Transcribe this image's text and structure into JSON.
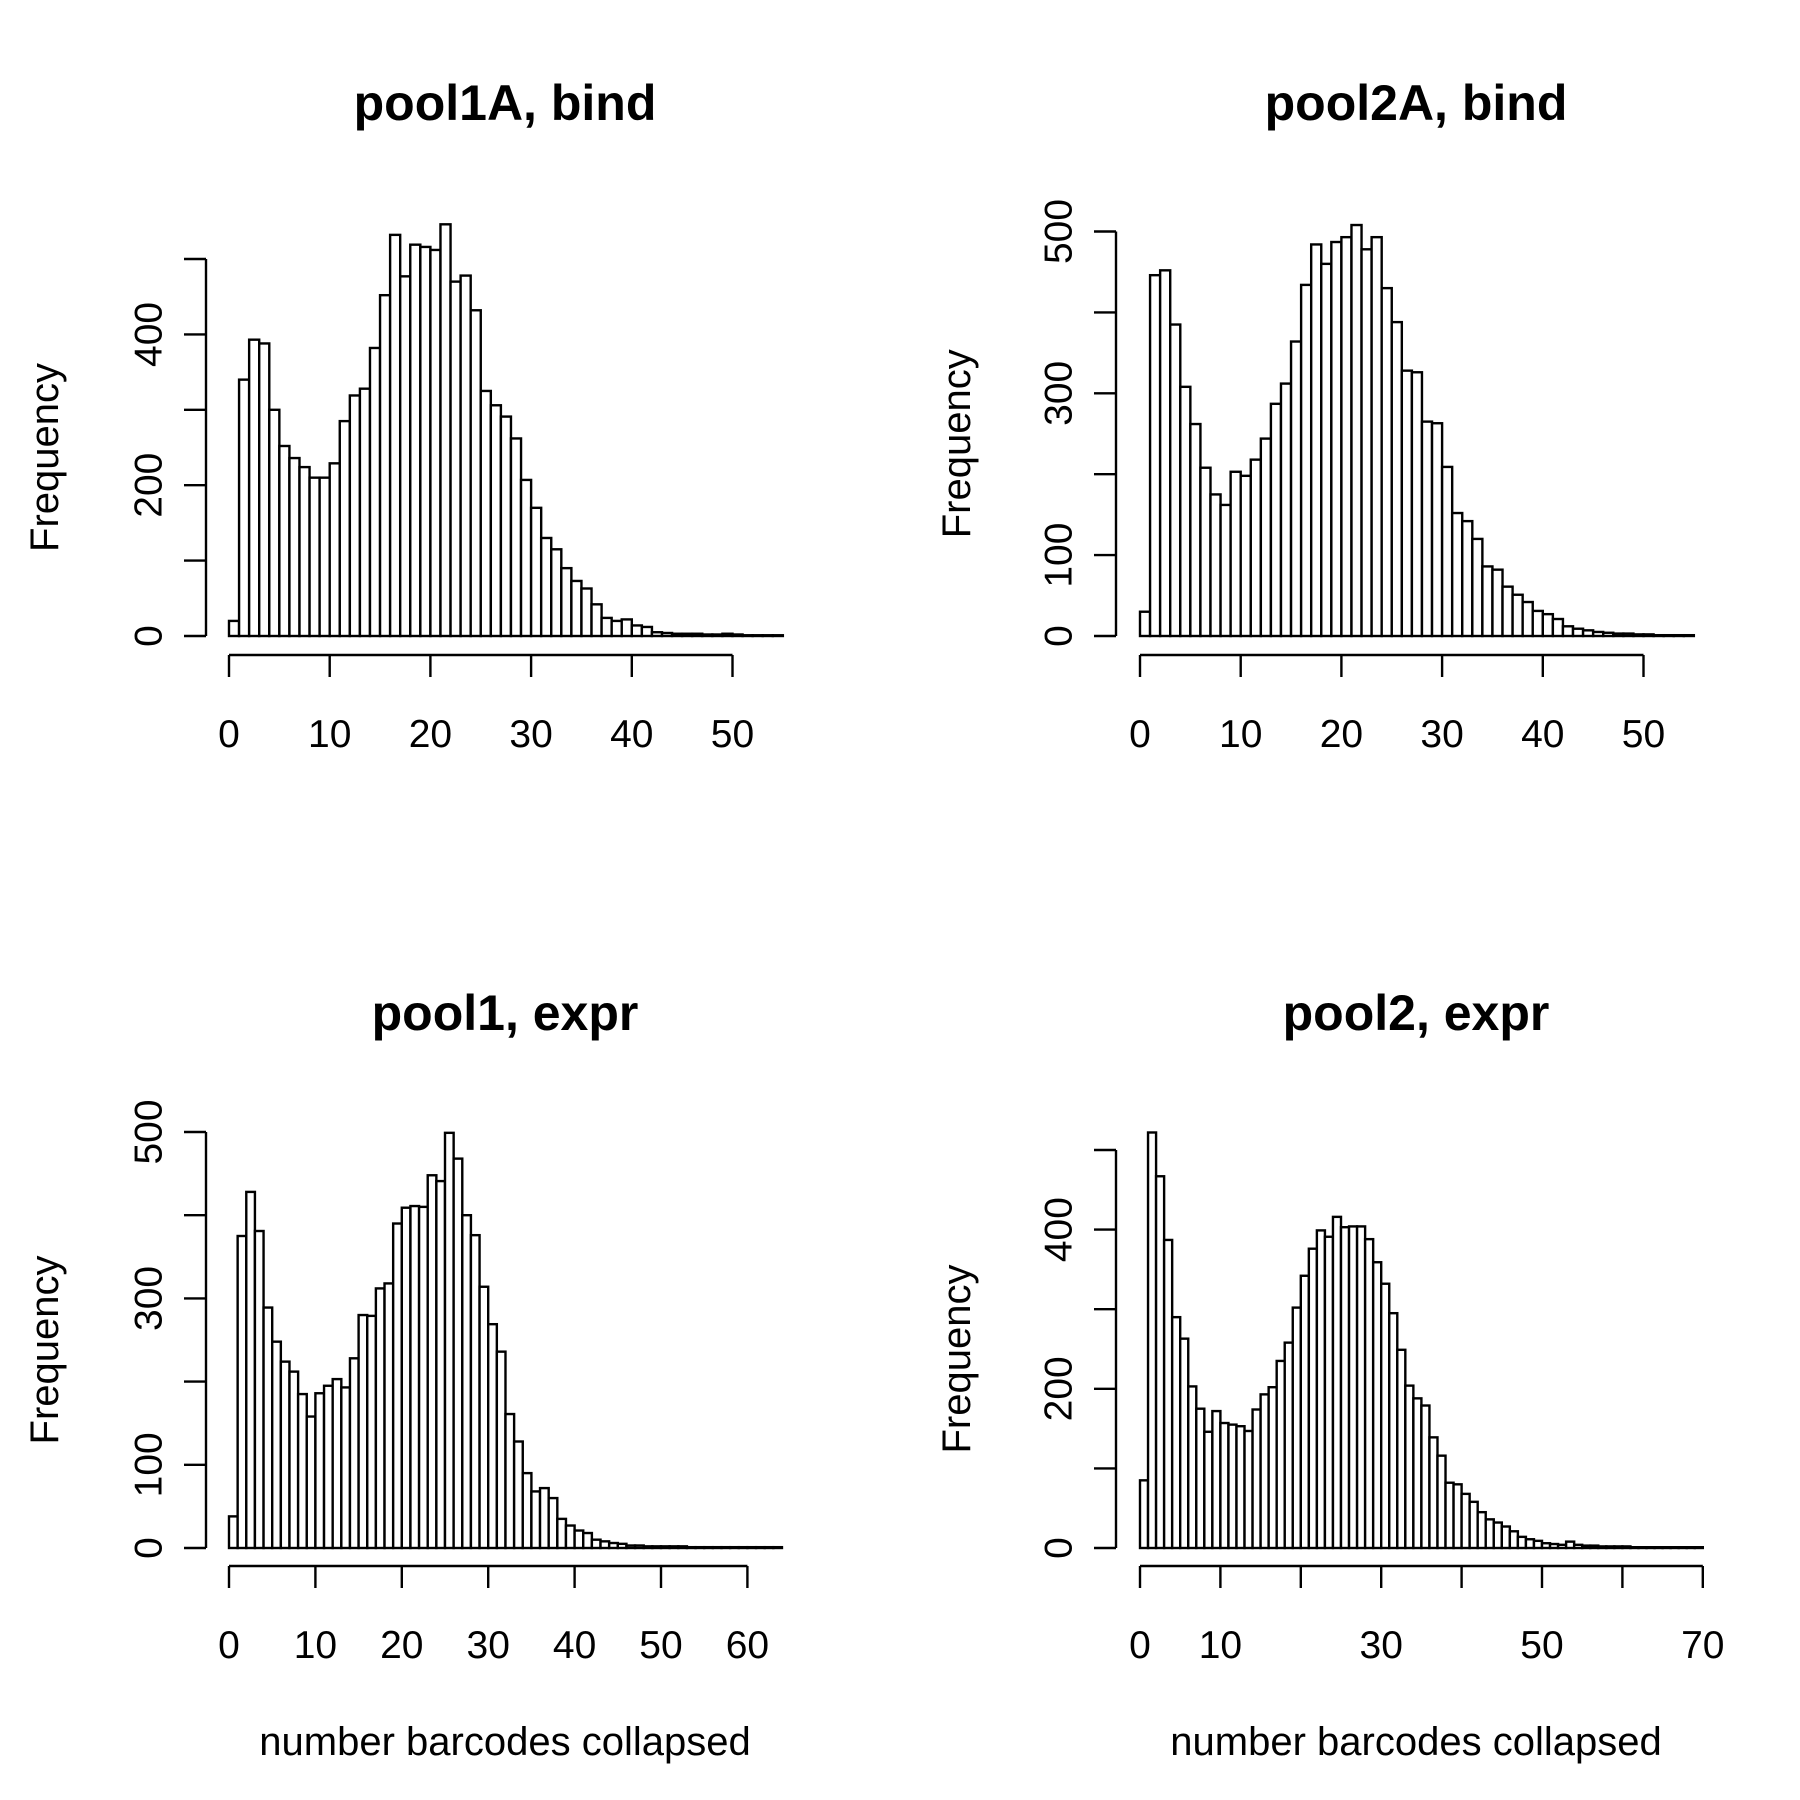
{
  "chart_data": [
    {
      "type": "bar",
      "title": "pool1A, bind",
      "xlabel": "",
      "ylabel": "Frequency",
      "bin_width": 1,
      "x_start": 0,
      "x_ticks": [
        0,
        10,
        20,
        30,
        40,
        50
      ],
      "y_ticks": [
        0,
        100,
        200,
        300,
        400,
        500
      ],
      "y_tick_labels": [
        "0",
        "",
        "200",
        "",
        "400",
        ""
      ],
      "values": [
        20,
        340,
        393,
        388,
        300,
        252,
        236,
        224,
        210,
        210,
        229,
        285,
        319,
        328,
        382,
        452,
        532,
        477,
        519,
        516,
        512,
        546,
        470,
        478,
        432,
        325,
        306,
        291,
        262,
        207,
        170,
        130,
        115,
        90,
        73,
        63,
        42,
        24,
        20,
        22,
        14,
        12,
        5,
        4,
        3,
        3,
        3,
        2,
        2,
        3,
        2,
        1,
        1,
        1,
        1
      ]
    },
    {
      "type": "bar",
      "title": "pool2A, bind",
      "xlabel": "",
      "ylabel": "Frequency",
      "bin_width": 1,
      "x_start": 0,
      "x_ticks": [
        0,
        10,
        20,
        30,
        40,
        50
      ],
      "y_ticks": [
        0,
        100,
        200,
        300,
        400,
        500
      ],
      "y_tick_labels": [
        "0",
        "100",
        "",
        "300",
        "",
        "500"
      ],
      "values": [
        30,
        446,
        452,
        385,
        308,
        262,
        208,
        175,
        162,
        203,
        198,
        218,
        244,
        287,
        312,
        364,
        434,
        484,
        460,
        487,
        493,
        508,
        478,
        493,
        430,
        388,
        328,
        326,
        265,
        263,
        209,
        152,
        142,
        120,
        86,
        82,
        61,
        51,
        42,
        31,
        27,
        21,
        12,
        9,
        7,
        5,
        4,
        3,
        3,
        2,
        2,
        1,
        1,
        1,
        1
      ]
    },
    {
      "type": "bar",
      "title": "pool1, expr",
      "xlabel": "number barcodes collapsed",
      "ylabel": "Frequency",
      "bin_width": 1,
      "x_start": 0,
      "x_ticks": [
        0,
        10,
        20,
        30,
        40,
        50,
        60
      ],
      "y_ticks": [
        0,
        100,
        200,
        300,
        400,
        500
      ],
      "y_tick_labels": [
        "0",
        "100",
        "",
        "300",
        "",
        "500"
      ],
      "values": [
        38,
        375,
        428,
        381,
        289,
        248,
        224,
        212,
        185,
        158,
        186,
        195,
        203,
        193,
        228,
        280,
        279,
        312,
        318,
        390,
        409,
        411,
        410,
        448,
        441,
        499,
        468,
        400,
        376,
        314,
        269,
        236,
        161,
        128,
        90,
        68,
        72,
        60,
        35,
        27,
        21,
        18,
        10,
        8,
        6,
        5,
        3,
        3,
        2,
        2,
        2,
        2,
        2,
        1,
        1,
        1,
        1,
        1,
        1,
        1,
        1,
        1,
        1,
        1
      ]
    },
    {
      "type": "bar",
      "title": "pool2, expr",
      "xlabel": "number barcodes collapsed",
      "ylabel": "Frequency",
      "bin_width": 1,
      "x_start": 0,
      "x_ticks": [
        0,
        10,
        20,
        30,
        40,
        50,
        60,
        70
      ],
      "x_tick_labels": [
        "0",
        "10",
        "",
        "30",
        "",
        "50",
        "",
        "70"
      ],
      "y_ticks": [
        0,
        100,
        200,
        300,
        400,
        500
      ],
      "y_tick_labels": [
        "0",
        "",
        "200",
        "",
        "400",
        ""
      ],
      "values": [
        85,
        522,
        467,
        387,
        290,
        263,
        203,
        175,
        146,
        172,
        157,
        155,
        153,
        147,
        174,
        193,
        202,
        235,
        258,
        302,
        342,
        376,
        399,
        391,
        416,
        403,
        404,
        404,
        388,
        359,
        332,
        295,
        249,
        204,
        188,
        179,
        139,
        116,
        82,
        80,
        68,
        58,
        45,
        36,
        32,
        27,
        21,
        14,
        11,
        9,
        6,
        5,
        4,
        8,
        4,
        3,
        3,
        2,
        2,
        2,
        2,
        1,
        1,
        1,
        1,
        1,
        1,
        1,
        1,
        1
      ]
    }
  ]
}
